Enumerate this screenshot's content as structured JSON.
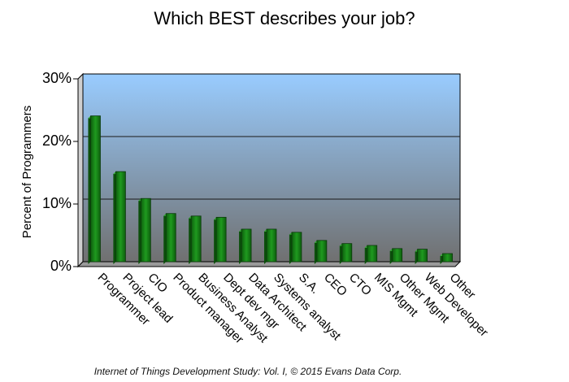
{
  "chart_data": {
    "type": "bar",
    "title": "Which BEST describes your job?",
    "ylabel": "Percent of Programmers",
    "xlabel": "",
    "ylim": [
      0,
      30
    ],
    "yticks": [
      0,
      10,
      20,
      30
    ],
    "ytick_labels": [
      "0%",
      "10%",
      "20%",
      "30%"
    ],
    "grid": true,
    "legend": "none",
    "bar_color": "#1f8a1f",
    "plot_background": [
      "#99ccff",
      "#707070"
    ],
    "categories": [
      "Programmer",
      "Project lead",
      "CIO",
      "Product manager",
      "Business Analyst",
      "Dept dev mgr",
      "Data Architect",
      "Systems analyst",
      "S.A.",
      "CEO",
      "CTO",
      "MIS Mgmt",
      "Other Mgmt",
      "Web Developer",
      "Other"
    ],
    "values": [
      23.3,
      14.4,
      10.1,
      7.7,
      7.3,
      7.1,
      5.2,
      5.2,
      4.7,
      3.4,
      2.9,
      2.6,
      2.1,
      2.0,
      1.3
    ]
  },
  "footer": "Internet of Things Development Study: Vol. I, © 2015 Evans Data Corp."
}
